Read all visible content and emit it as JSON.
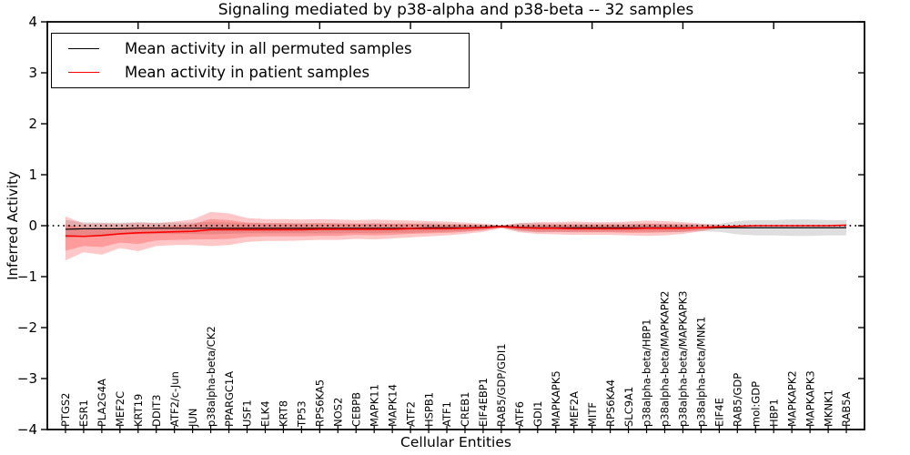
{
  "title": "Signaling mediated by p38-alpha and p38-beta -- 32 samples",
  "axes": {
    "x_label": "Cellular Entities",
    "y_label": "Inferred Activity",
    "y_ticks": [
      "4",
      "3",
      "2",
      "1",
      "0",
      "−1",
      "−2",
      "−3",
      "−4"
    ],
    "y_tick_values": [
      4,
      3,
      2,
      1,
      0,
      -1,
      -2,
      -3,
      -4
    ]
  },
  "legend": {
    "entries": [
      {
        "label": "Mean activity in all permuted samples",
        "color": "#000000"
      },
      {
        "label": "Mean activity in patient samples",
        "color": "#ff0000"
      }
    ]
  },
  "colors": {
    "permuted_line": "#000000",
    "patient_line": "#ff0000",
    "permuted_band": "rgba(0,0,0,0.13)",
    "patient_band": "rgba(255,0,0,0.22)",
    "zero_line": "#000000",
    "frame": "#000000",
    "background": "#ffffff"
  },
  "chart_data": {
    "type": "line",
    "title": "Signaling mediated by p38-alpha and p38-beta -- 32 samples",
    "xlabel": "Cellular Entities",
    "ylabel": "Inferred Activity",
    "ylim": [
      -4,
      4
    ],
    "grid": false,
    "legend_position": "upper left",
    "zero_line_style": "dotted",
    "categories": [
      "PTGS2",
      "ESR1",
      "PLA2G4A",
      "MEF2C",
      "KRT19",
      "DDIT3",
      "ATF2/c-Jun",
      "JUN",
      "p38alpha-beta/CK2",
      "PPARGC1A",
      "USF1",
      "ELK4",
      "KRT8",
      "TP53",
      "RPS6KA5",
      "NOS2",
      "CEBPB",
      "MAPK11",
      "MAPK14",
      "ATF2",
      "HSPB1",
      "ATF1",
      "CREB1",
      "EIF4EBP1",
      "RAB5/GDP/GDI1",
      "ATF6",
      "GDI1",
      "MAPKAPK5",
      "MEF2A",
      "MITF",
      "RPS6KA4",
      "SLC9A1",
      "p38alpha-beta/HBP1",
      "p38alpha-beta/MAPKAPK2",
      "p38alpha-beta/MAPKAPK3",
      "p38alpha-beta/MNK1",
      "EIF4E",
      "RAB5/GDP",
      "mol:GDP",
      "HBP1",
      "MAPKAPK2",
      "MAPKAPK3",
      "MKNK1",
      "RAB5A"
    ],
    "series": [
      {
        "name": "Mean activity in all permuted samples",
        "color": "#000000",
        "mean": [
          -0.07,
          -0.06,
          -0.06,
          -0.06,
          -0.05,
          -0.05,
          -0.05,
          -0.05,
          -0.05,
          -0.05,
          -0.05,
          -0.05,
          -0.05,
          -0.05,
          -0.05,
          -0.05,
          -0.05,
          -0.05,
          -0.05,
          -0.05,
          -0.04,
          -0.04,
          -0.04,
          -0.03,
          -0.01,
          -0.03,
          -0.04,
          -0.04,
          -0.04,
          -0.04,
          -0.04,
          -0.04,
          -0.04,
          -0.04,
          -0.04,
          -0.04,
          -0.04,
          -0.04,
          -0.04,
          -0.04,
          -0.04,
          -0.04,
          -0.04,
          -0.04
        ],
        "band_high": [
          0.11,
          0.07,
          0.06,
          0.06,
          0.07,
          0.06,
          0.06,
          0.06,
          0.07,
          0.06,
          0.05,
          0.05,
          0.05,
          0.05,
          0.05,
          0.05,
          0.04,
          0.05,
          0.04,
          0.04,
          0.05,
          0.04,
          0.03,
          0.02,
          0.01,
          0.05,
          0.05,
          0.04,
          0.04,
          0.04,
          0.04,
          0.04,
          0.04,
          0.04,
          0.04,
          0.03,
          0.04,
          0.09,
          0.11,
          0.11,
          0.12,
          0.12,
          0.11,
          0.11
        ],
        "band_low": [
          -0.25,
          -0.19,
          -0.18,
          -0.17,
          -0.17,
          -0.16,
          -0.16,
          -0.16,
          -0.17,
          -0.16,
          -0.15,
          -0.15,
          -0.15,
          -0.15,
          -0.15,
          -0.15,
          -0.14,
          -0.15,
          -0.14,
          -0.14,
          -0.13,
          -0.12,
          -0.11,
          -0.08,
          -0.03,
          -0.11,
          -0.13,
          -0.12,
          -0.12,
          -0.12,
          -0.12,
          -0.12,
          -0.12,
          -0.12,
          -0.12,
          -0.11,
          -0.12,
          -0.17,
          -0.19,
          -0.19,
          -0.2,
          -0.2,
          -0.19,
          -0.19
        ]
      },
      {
        "name": "Mean activity in patient samples",
        "color": "#ff0000",
        "mean": [
          -0.2,
          -0.21,
          -0.19,
          -0.16,
          -0.14,
          -0.13,
          -0.12,
          -0.11,
          -0.08,
          -0.08,
          -0.08,
          -0.08,
          -0.08,
          -0.08,
          -0.07,
          -0.07,
          -0.07,
          -0.07,
          -0.07,
          -0.06,
          -0.06,
          -0.06,
          -0.05,
          -0.04,
          -0.02,
          -0.04,
          -0.05,
          -0.05,
          -0.06,
          -0.06,
          -0.06,
          -0.06,
          -0.05,
          -0.05,
          -0.05,
          -0.04,
          -0.02,
          -0.01,
          0.0,
          0.0,
          0.0,
          0.0,
          0.0,
          0.01
        ],
        "band_outer_high": [
          0.18,
          0.04,
          0.05,
          0.04,
          0.06,
          0.05,
          0.08,
          0.12,
          0.27,
          0.24,
          0.15,
          0.13,
          0.13,
          0.12,
          0.13,
          0.12,
          0.11,
          0.12,
          0.11,
          0.1,
          0.09,
          0.08,
          0.06,
          0.04,
          0.01,
          0.05,
          0.07,
          0.07,
          0.08,
          0.07,
          0.07,
          0.08,
          0.1,
          0.09,
          0.07,
          0.04,
          0.01,
          0.0,
          0.01,
          0.01,
          0.01,
          0.01,
          0.01,
          0.02
        ],
        "band_outer_low": [
          -0.68,
          -0.52,
          -0.57,
          -0.44,
          -0.5,
          -0.4,
          -0.38,
          -0.38,
          -0.4,
          -0.38,
          -0.32,
          -0.3,
          -0.3,
          -0.29,
          -0.28,
          -0.28,
          -0.26,
          -0.27,
          -0.25,
          -0.23,
          -0.21,
          -0.19,
          -0.16,
          -0.12,
          -0.05,
          -0.13,
          -0.16,
          -0.17,
          -0.18,
          -0.18,
          -0.18,
          -0.19,
          -0.2,
          -0.19,
          -0.16,
          -0.11,
          -0.05,
          -0.02,
          -0.01,
          -0.01,
          -0.01,
          -0.01,
          -0.01,
          0.0
        ],
        "band_inner_high": [
          0.03,
          -0.06,
          -0.05,
          -0.04,
          -0.02,
          -0.02,
          0.0,
          0.03,
          0.13,
          0.11,
          0.06,
          0.05,
          0.05,
          0.04,
          0.05,
          0.04,
          0.04,
          0.04,
          0.04,
          0.04,
          0.03,
          0.02,
          0.02,
          0.01,
          0.0,
          0.01,
          0.02,
          0.02,
          0.02,
          0.02,
          0.02,
          0.02,
          0.04,
          0.03,
          0.02,
          0.01,
          0.0,
          -0.01,
          0.0,
          0.0,
          0.0,
          0.0,
          0.0,
          0.01
        ],
        "band_inner_low": [
          -0.49,
          -0.4,
          -0.42,
          -0.33,
          -0.36,
          -0.29,
          -0.28,
          -0.27,
          -0.27,
          -0.26,
          -0.22,
          -0.21,
          -0.21,
          -0.21,
          -0.2,
          -0.2,
          -0.18,
          -0.19,
          -0.18,
          -0.16,
          -0.15,
          -0.14,
          -0.12,
          -0.09,
          -0.04,
          -0.09,
          -0.12,
          -0.12,
          -0.13,
          -0.13,
          -0.13,
          -0.14,
          -0.14,
          -0.13,
          -0.12,
          -0.08,
          -0.04,
          -0.02,
          -0.01,
          -0.01,
          -0.01,
          -0.01,
          -0.01,
          0.0
        ]
      }
    ]
  }
}
